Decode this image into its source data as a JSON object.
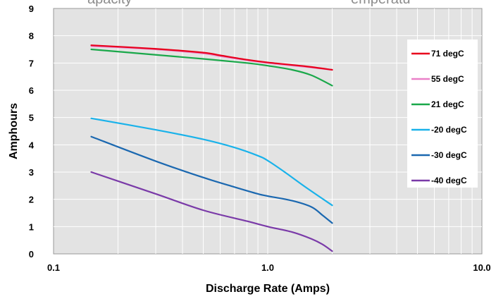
{
  "chart_data": {
    "type": "line",
    "title_fragments": [
      "apacity",
      "emperatu"
    ],
    "xlabel": "Discharge Rate (Amps)",
    "ylabel": "Amphours",
    "x_scale": "log",
    "xlim": [
      0.1,
      10.0
    ],
    "ylim": [
      0,
      9
    ],
    "x_tick_labels": [
      "0.1",
      "1.0",
      "10.0"
    ],
    "x_ticks": [
      0.1,
      1.0,
      10.0
    ],
    "y_ticks": [
      0,
      1,
      2,
      3,
      4,
      5,
      6,
      7,
      8,
      9
    ],
    "grid": true,
    "legend_position": "right",
    "series": [
      {
        "name": "71 degC",
        "color": "#e8001c",
        "x": [
          0.15,
          0.3,
          0.5,
          0.6,
          0.8,
          1.0,
          1.5,
          2.0
        ],
        "y": [
          7.65,
          7.52,
          7.38,
          7.28,
          7.12,
          7.02,
          6.88,
          6.75
        ]
      },
      {
        "name": "55 degC",
        "color": "#ea80c8",
        "x": [
          0.15,
          0.3,
          0.5,
          0.6,
          0.8,
          1.0,
          1.5,
          2.0
        ],
        "y": [
          7.62,
          7.5,
          7.35,
          7.25,
          7.1,
          7.0,
          6.86,
          6.75
        ]
      },
      {
        "name": "21 degC",
        "color": "#1aa84a",
        "x": [
          0.15,
          0.3,
          0.5,
          0.8,
          1.0,
          1.3,
          1.6,
          2.0
        ],
        "y": [
          7.5,
          7.3,
          7.15,
          7.0,
          6.9,
          6.75,
          6.55,
          6.17
        ]
      },
      {
        "name": "-20 degC",
        "color": "#19b2ea",
        "x": [
          0.15,
          0.3,
          0.5,
          0.7,
          0.9,
          1.0,
          1.2,
          1.5,
          2.0
        ],
        "y": [
          4.97,
          4.55,
          4.2,
          3.9,
          3.6,
          3.42,
          3.0,
          2.45,
          1.78
        ]
      },
      {
        "name": "-30 degC",
        "color": "#1b68b0",
        "x": [
          0.15,
          0.3,
          0.5,
          0.7,
          0.9,
          1.0,
          1.3,
          1.6,
          1.8,
          2.0
        ],
        "y": [
          4.3,
          3.4,
          2.8,
          2.45,
          2.2,
          2.12,
          1.95,
          1.72,
          1.42,
          1.13
        ]
      },
      {
        "name": "-40 degC",
        "color": "#7a3aa8",
        "x": [
          0.15,
          0.3,
          0.5,
          0.8,
          1.0,
          1.3,
          1.6,
          1.8,
          2.0
        ],
        "y": [
          3.0,
          2.2,
          1.6,
          1.2,
          1.0,
          0.8,
          0.55,
          0.35,
          0.1
        ]
      }
    ]
  }
}
